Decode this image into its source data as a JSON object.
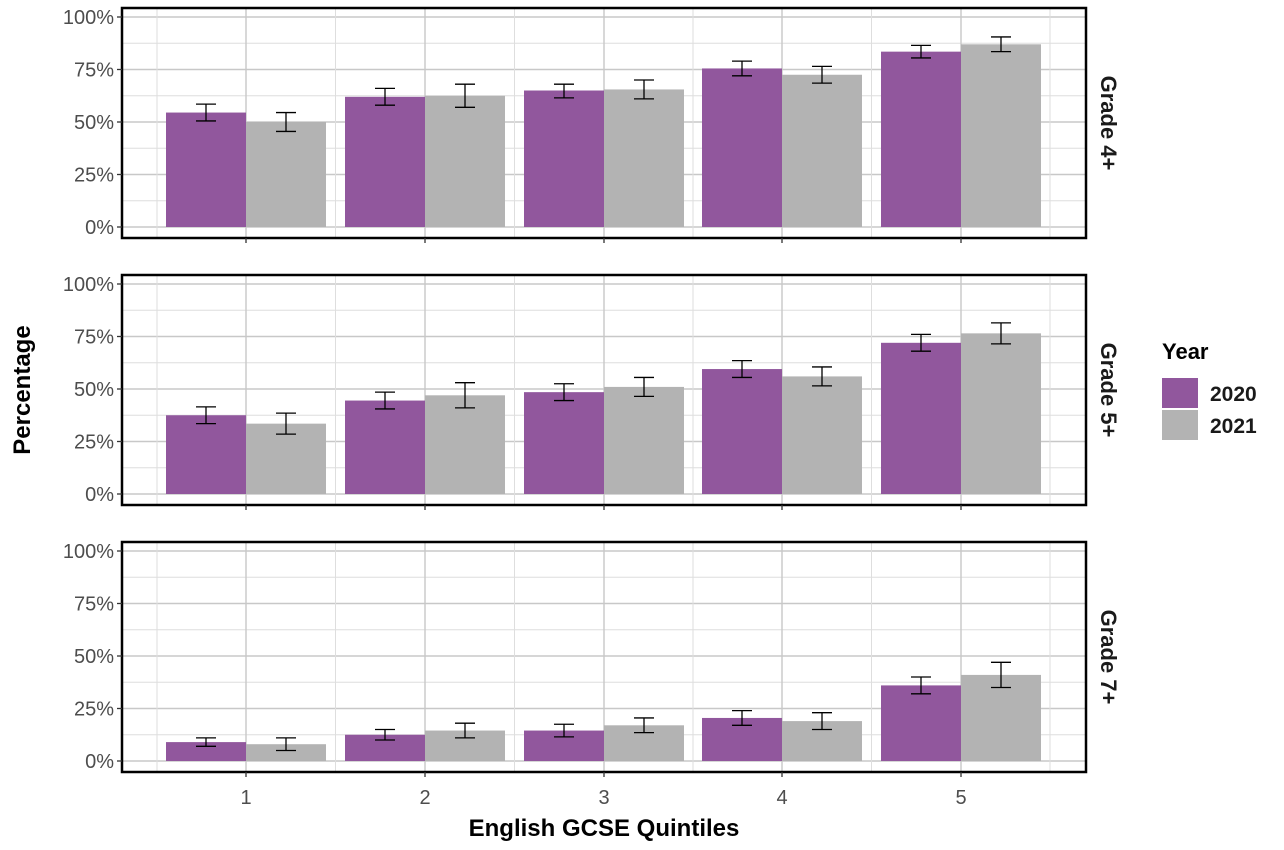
{
  "chart_data": {
    "type": "bar",
    "xlabel": "English GCSE Quintiles",
    "ylabel": "Percentage",
    "categories": [
      "1",
      "2",
      "3",
      "4",
      "5"
    ],
    "y_ticks": [
      "0%",
      "25%",
      "50%",
      "75%",
      "100%"
    ],
    "ylim": [
      0,
      1
    ],
    "grid": true,
    "legend": {
      "title": "Year",
      "position": "right",
      "items": [
        {
          "label": "2020",
          "color": "#91579d"
        },
        {
          "label": "2021",
          "color": "#b3b3b3"
        }
      ]
    },
    "panels": [
      {
        "label": "Grade 4+",
        "series": [
          {
            "name": "2020",
            "values": [
              0.545,
              0.62,
              0.65,
              0.755,
              0.835
            ],
            "err_low": [
              0.505,
              0.58,
              0.615,
              0.72,
              0.805
            ],
            "err_high": [
              0.585,
              0.66,
              0.68,
              0.79,
              0.865
            ]
          },
          {
            "name": "2021",
            "values": [
              0.5,
              0.625,
              0.655,
              0.725,
              0.87
            ],
            "err_low": [
              0.455,
              0.57,
              0.61,
              0.685,
              0.835
            ],
            "err_high": [
              0.545,
              0.68,
              0.7,
              0.765,
              0.905
            ]
          }
        ]
      },
      {
        "label": "Grade 5+",
        "series": [
          {
            "name": "2020",
            "values": [
              0.375,
              0.445,
              0.485,
              0.595,
              0.72
            ],
            "err_low": [
              0.335,
              0.405,
              0.445,
              0.555,
              0.68
            ],
            "err_high": [
              0.415,
              0.485,
              0.525,
              0.635,
              0.76
            ]
          },
          {
            "name": "2021",
            "values": [
              0.335,
              0.47,
              0.51,
              0.56,
              0.765
            ],
            "err_low": [
              0.285,
              0.41,
              0.465,
              0.515,
              0.715
            ],
            "err_high": [
              0.385,
              0.53,
              0.555,
              0.605,
              0.815
            ]
          }
        ]
      },
      {
        "label": "Grade 7+",
        "series": [
          {
            "name": "2020",
            "values": [
              0.09,
              0.125,
              0.145,
              0.205,
              0.36
            ],
            "err_low": [
              0.07,
              0.1,
              0.115,
              0.17,
              0.32
            ],
            "err_high": [
              0.11,
              0.15,
              0.175,
              0.24,
              0.4
            ]
          },
          {
            "name": "2021",
            "values": [
              0.08,
              0.145,
              0.17,
              0.19,
              0.41
            ],
            "err_low": [
              0.05,
              0.11,
              0.135,
              0.15,
              0.35
            ],
            "err_high": [
              0.11,
              0.18,
              0.205,
              0.23,
              0.47
            ]
          }
        ]
      }
    ]
  }
}
